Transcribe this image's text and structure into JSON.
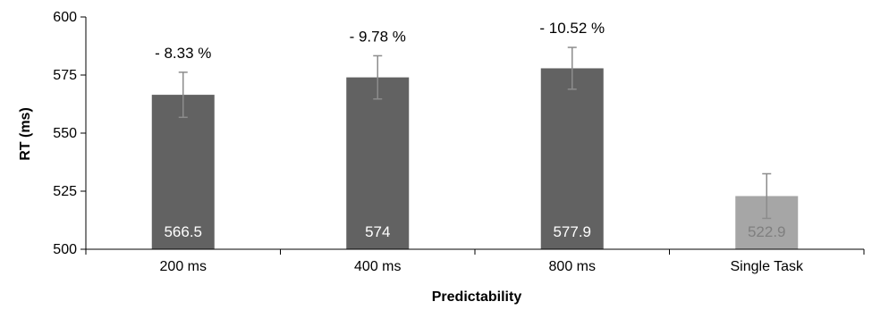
{
  "chart_data": {
    "type": "bar",
    "categories": [
      "200 ms",
      "400 ms",
      "800 ms",
      "Single Task"
    ],
    "values": [
      566.5,
      574,
      577.9,
      522.9
    ],
    "value_labels": [
      "566.5",
      "574",
      "577.9",
      "522.9"
    ],
    "error_upper": [
      576.2,
      583.3,
      586.9,
      532.5
    ],
    "error_lower": [
      556.8,
      564.7,
      568.9,
      513.3
    ],
    "annotations": [
      "- 8.33 %",
      "- 9.78 %",
      "- 10.52 %",
      ""
    ],
    "bar_colors": [
      "#626262",
      "#626262",
      "#626262",
      "#a6a6a6"
    ],
    "value_label_colors": [
      "#ffffff",
      "#ffffff",
      "#ffffff",
      "#7f7f7f"
    ],
    "error_bar_color": "#8c8c8c",
    "axis_color": "#000000",
    "title": "",
    "xlabel": "Predictability",
    "ylabel": "RT (ms)",
    "ylim": [
      500,
      600
    ],
    "yticks": [
      500,
      525,
      550,
      575,
      600
    ],
    "grid": false,
    "legend": "none"
  }
}
